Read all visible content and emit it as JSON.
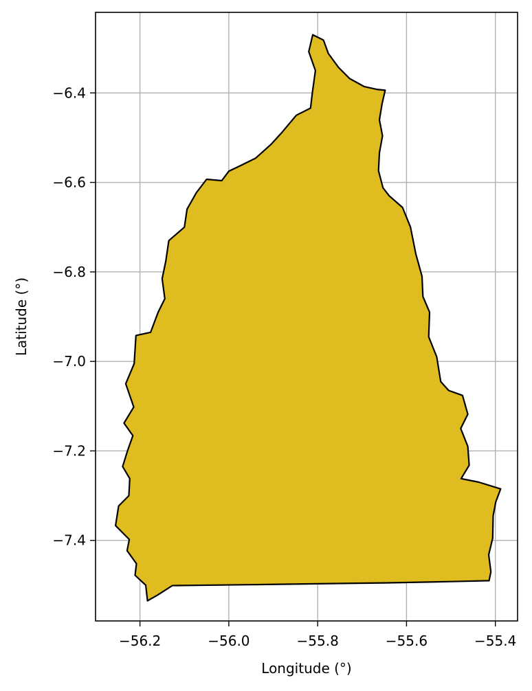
{
  "chart_data": {
    "type": "map",
    "title": "",
    "xlabel": "Longitude (°)",
    "ylabel": "Latitude (°)",
    "xlim": [
      -56.3,
      -55.35
    ],
    "ylim": [
      -7.58,
      -6.22
    ],
    "grid": true,
    "colors": {
      "fill": "#DFBD20",
      "outline": "#000000",
      "grid": "#b0b0b0"
    },
    "x_ticks": [
      {
        "value": -56.2,
        "label": "−56.2"
      },
      {
        "value": -56.0,
        "label": "−56.0"
      },
      {
        "value": -55.8,
        "label": "−55.8"
      },
      {
        "value": -55.6,
        "label": "−55.6"
      },
      {
        "value": -55.4,
        "label": "−55.4"
      }
    ],
    "y_ticks": [
      {
        "value": -6.4,
        "label": "−6.4"
      },
      {
        "value": -6.6,
        "label": "−6.6"
      },
      {
        "value": -6.8,
        "label": "−6.8"
      },
      {
        "value": -7.0,
        "label": "−7.0"
      },
      {
        "value": -7.2,
        "label": "−7.2"
      },
      {
        "value": -7.4,
        "label": "−7.4"
      }
    ],
    "polygon": [
      [
        -55.811,
        -6.27
      ],
      [
        -55.787,
        -6.282
      ],
      [
        -55.776,
        -6.312
      ],
      [
        -55.753,
        -6.343
      ],
      [
        -55.728,
        -6.368
      ],
      [
        -55.695,
        -6.386
      ],
      [
        -55.667,
        -6.392
      ],
      [
        -55.648,
        -6.394
      ],
      [
        -55.655,
        -6.424
      ],
      [
        -55.661,
        -6.46
      ],
      [
        -55.654,
        -6.496
      ],
      [
        -55.661,
        -6.534
      ],
      [
        -55.663,
        -6.574
      ],
      [
        -55.653,
        -6.612
      ],
      [
        -55.639,
        -6.63
      ],
      [
        -55.609,
        -6.656
      ],
      [
        -55.591,
        -6.7
      ],
      [
        -55.579,
        -6.76
      ],
      [
        -55.565,
        -6.81
      ],
      [
        -55.563,
        -6.855
      ],
      [
        -55.548,
        -6.89
      ],
      [
        -55.55,
        -6.945
      ],
      [
        -55.532,
        -6.99
      ],
      [
        -55.523,
        -7.045
      ],
      [
        -55.505,
        -7.065
      ],
      [
        -55.474,
        -7.076
      ],
      [
        -55.462,
        -7.118
      ],
      [
        -55.478,
        -7.15
      ],
      [
        -55.462,
        -7.19
      ],
      [
        -55.459,
        -7.232
      ],
      [
        -55.477,
        -7.262
      ],
      [
        -55.437,
        -7.27
      ],
      [
        -55.388,
        -7.285
      ],
      [
        -55.399,
        -7.314
      ],
      [
        -55.405,
        -7.345
      ],
      [
        -55.406,
        -7.395
      ],
      [
        -55.415,
        -7.432
      ],
      [
        -55.41,
        -7.47
      ],
      [
        -55.414,
        -7.49
      ],
      [
        -55.5,
        -7.492
      ],
      [
        -55.65,
        -7.495
      ],
      [
        -55.8,
        -7.497
      ],
      [
        -55.95,
        -7.499
      ],
      [
        -56.127,
        -7.501
      ],
      [
        -56.16,
        -7.522
      ],
      [
        -56.183,
        -7.535
      ],
      [
        -56.187,
        -7.5
      ],
      [
        -56.211,
        -7.478
      ],
      [
        -56.208,
        -7.452
      ],
      [
        -56.229,
        -7.423
      ],
      [
        -56.224,
        -7.398
      ],
      [
        -56.255,
        -7.367
      ],
      [
        -56.248,
        -7.323
      ],
      [
        -56.225,
        -7.3
      ],
      [
        -56.223,
        -7.262
      ],
      [
        -56.239,
        -7.235
      ],
      [
        -56.228,
        -7.2
      ],
      [
        -56.216,
        -7.166
      ],
      [
        -56.236,
        -7.138
      ],
      [
        -56.214,
        -7.102
      ],
      [
        -56.232,
        -7.05
      ],
      [
        -56.213,
        -7.005
      ],
      [
        -56.209,
        -6.942
      ],
      [
        -56.176,
        -6.935
      ],
      [
        -56.159,
        -6.89
      ],
      [
        -56.144,
        -6.86
      ],
      [
        -56.15,
        -6.815
      ],
      [
        -56.142,
        -6.777
      ],
      [
        -56.135,
        -6.73
      ],
      [
        -56.1,
        -6.7
      ],
      [
        -56.094,
        -6.66
      ],
      [
        -56.073,
        -6.623
      ],
      [
        -56.05,
        -6.593
      ],
      [
        -56.016,
        -6.596
      ],
      [
        -56.0,
        -6.575
      ],
      [
        -55.975,
        -6.563
      ],
      [
        -55.94,
        -6.546
      ],
      [
        -55.905,
        -6.515
      ],
      [
        -55.882,
        -6.49
      ],
      [
        -55.848,
        -6.45
      ],
      [
        -55.816,
        -6.434
      ],
      [
        -55.812,
        -6.4
      ],
      [
        -55.805,
        -6.35
      ],
      [
        -55.82,
        -6.308
      ]
    ]
  }
}
